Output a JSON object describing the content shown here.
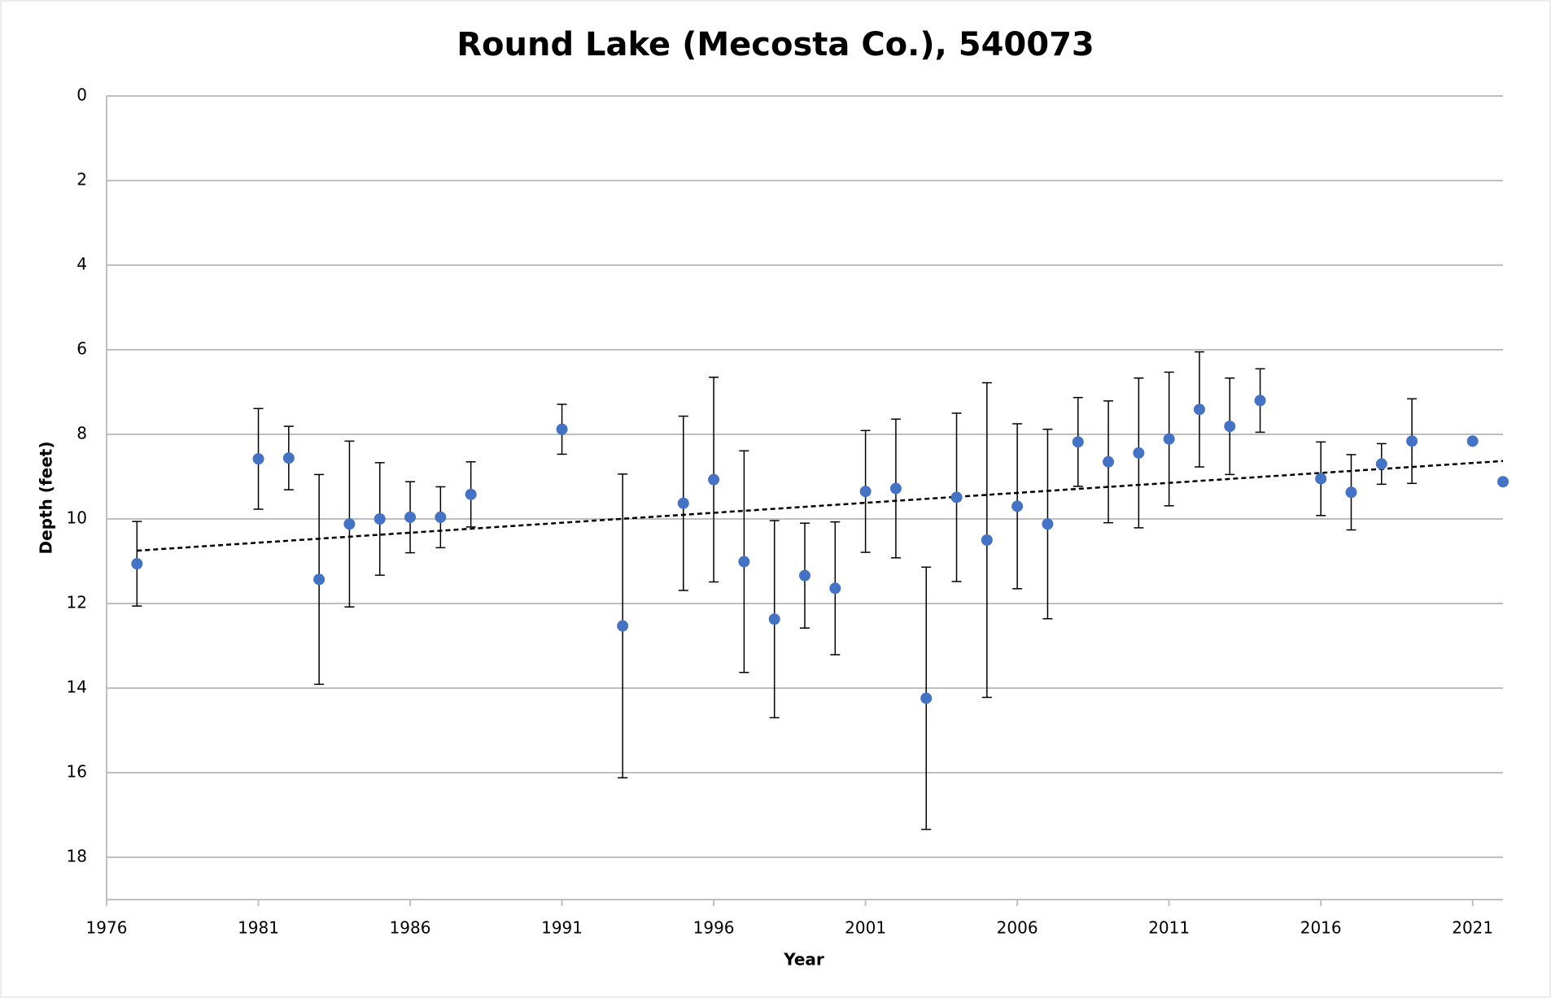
{
  "chart_data": {
    "type": "scatter",
    "title": "Round Lake (Mecosta Co.), 540073",
    "x_label": "Year",
    "y_label": "Depth (feet)",
    "x": [
      1977,
      1981,
      1982,
      1983,
      1984,
      1985,
      1986,
      1987,
      1988,
      1991,
      1993,
      1995,
      1996,
      1997,
      1998,
      1999,
      2000,
      2001,
      2002,
      2003,
      2004,
      2005,
      2006,
      2007,
      2008,
      2009,
      2010,
      2011,
      2012,
      2013,
      2014,
      2016,
      2017,
      2018,
      2019,
      2021,
      2022
    ],
    "values": [
      11.06,
      8.58,
      8.56,
      11.43,
      10.12,
      10.0,
      9.96,
      9.96,
      9.42,
      7.88,
      12.53,
      9.63,
      9.07,
      11.01,
      12.37,
      11.34,
      11.64,
      9.35,
      9.28,
      14.24,
      9.49,
      10.5,
      9.7,
      10.12,
      8.18,
      8.65,
      8.44,
      8.11,
      7.41,
      7.81,
      7.2,
      9.05,
      9.37,
      8.7,
      8.16,
      8.16,
      9.12
    ],
    "errors": [
      1.0,
      1.19,
      0.75,
      2.48,
      1.96,
      1.33,
      0.84,
      0.72,
      0.77,
      0.59,
      3.59,
      2.06,
      2.42,
      2.62,
      2.33,
      1.24,
      1.57,
      1.44,
      1.64,
      3.1,
      1.99,
      3.72,
      1.95,
      2.24,
      1.05,
      1.44,
      1.77,
      1.58,
      1.36,
      1.14,
      0.75,
      0.87,
      0.89,
      0.48,
      1.0,
      null,
      null
    ],
    "color": "#4472c4",
    "trendline": {
      "x": [
        1977,
        2022
      ],
      "y": [
        10.75,
        8.63
      ],
      "color": "#000000"
    },
    "xlim": [
      1976,
      2022
    ],
    "xticks": [
      1976,
      1981,
      1986,
      1991,
      1996,
      2001,
      2006,
      2011,
      2016,
      2021
    ],
    "ylim": [
      0,
      19
    ],
    "yticks": [
      0,
      2,
      4,
      6,
      8,
      10,
      12,
      14,
      16,
      18
    ],
    "y_inverted": true,
    "grid": true
  }
}
